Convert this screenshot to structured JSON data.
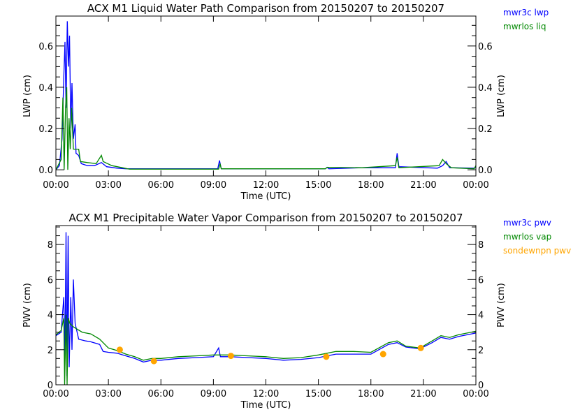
{
  "chart_data": [
    {
      "type": "line",
      "title": "ACX M1 Liquid Water Path Comparison from 20150207 to 20150207",
      "xlabel": "Time (UTC)",
      "ylabel": "LWP (cm)",
      "ylabel_right": "LWP (cm)",
      "xlim": [
        0,
        24
      ],
      "ylim": [
        -0.03,
        0.745
      ],
      "x_ticks": [
        0,
        3,
        6,
        9,
        12,
        15,
        18,
        21,
        24
      ],
      "x_tick_labels": [
        "00:00",
        "03:00",
        "06:00",
        "09:00",
        "12:00",
        "15:00",
        "18:00",
        "21:00",
        "00:00"
      ],
      "y_ticks": [
        0,
        0.2,
        0.4,
        0.6
      ],
      "y_tick_labels": [
        "0.0",
        "0.2",
        "0.4",
        "0.6"
      ],
      "legend_position": "outside-top-right",
      "series": [
        {
          "name": "mwr3c lwp",
          "color": "#0000ff",
          "points": [
            [
              0,
              0.0
            ],
            [
              0.2,
              0.02
            ],
            [
              0.35,
              0.15
            ],
            [
              0.45,
              0.45
            ],
            [
              0.52,
              0.62
            ],
            [
              0.58,
              0.3
            ],
            [
              0.65,
              0.72
            ],
            [
              0.72,
              0.5
            ],
            [
              0.78,
              0.65
            ],
            [
              0.85,
              0.2
            ],
            [
              0.92,
              0.42
            ],
            [
              1.0,
              0.15
            ],
            [
              1.1,
              0.22
            ],
            [
              1.15,
              0.08
            ],
            [
              1.3,
              0.07
            ],
            [
              1.45,
              0.03
            ],
            [
              1.8,
              0.02
            ],
            [
              2.2,
              0.02
            ],
            [
              2.6,
              0.035
            ],
            [
              2.9,
              0.015
            ],
            [
              3.5,
              0.008
            ],
            [
              4,
              0.005
            ],
            [
              9.25,
              0.005
            ],
            [
              9.35,
              0.045
            ],
            [
              9.45,
              0.005
            ],
            [
              15.4,
              0.005
            ],
            [
              15.5,
              0.012
            ],
            [
              15.6,
              0.005
            ],
            [
              17.5,
              0.01
            ],
            [
              19.4,
              0.01
            ],
            [
              19.5,
              0.08
            ],
            [
              19.6,
              0.015
            ],
            [
              21.8,
              0.008
            ],
            [
              22.1,
              0.02
            ],
            [
              22.3,
              0.04
            ],
            [
              22.5,
              0.01
            ],
            [
              23.9,
              0.008
            ],
            [
              24,
              0.012
            ]
          ]
        },
        {
          "name": "mwrlos liq",
          "color": "#008800",
          "points": [
            [
              0,
              0.0
            ],
            [
              0.3,
              0.05
            ],
            [
              0.4,
              0.35
            ],
            [
              0.47,
              0.0
            ],
            [
              0.55,
              0.3
            ],
            [
              0.62,
              0.4
            ],
            [
              0.68,
              0.0
            ],
            [
              0.75,
              0.25
            ],
            [
              0.82,
              0.1
            ],
            [
              0.9,
              0.3
            ],
            [
              1.0,
              0.1
            ],
            [
              1.1,
              0.1
            ],
            [
              1.3,
              0.1
            ],
            [
              1.4,
              0.04
            ],
            [
              1.8,
              0.035
            ],
            [
              2.3,
              0.03
            ],
            [
              2.6,
              0.07
            ],
            [
              2.7,
              0.04
            ],
            [
              3.2,
              0.02
            ],
            [
              3.8,
              0.01
            ],
            [
              4.2,
              0.003
            ],
            [
              9.3,
              0.003
            ],
            [
              9.38,
              0.03
            ],
            [
              9.45,
              0.005
            ],
            [
              15.4,
              0.005
            ],
            [
              15.5,
              0.012
            ],
            [
              17.5,
              0.01
            ],
            [
              19.4,
              0.02
            ],
            [
              19.5,
              0.06
            ],
            [
              19.6,
              0.01
            ],
            [
              21.9,
              0.02
            ],
            [
              22.1,
              0.05
            ],
            [
              22.3,
              0.03
            ],
            [
              22.6,
              0.01
            ],
            [
              23.9,
              0.005
            ],
            [
              24,
              0.02
            ]
          ]
        }
      ]
    },
    {
      "type": "line",
      "title": "ACX M1 Precipitable Water Vapor Comparison from 20150207 to 20150207",
      "xlabel": "Time (UTC)",
      "ylabel": "PWV (cm)",
      "ylabel_right": "PWV (cm)",
      "xlim": [
        0,
        24
      ],
      "ylim": [
        0,
        9.08
      ],
      "x_ticks": [
        0,
        3,
        6,
        9,
        12,
        15,
        18,
        21,
        24
      ],
      "x_tick_labels": [
        "00:00",
        "03:00",
        "06:00",
        "09:00",
        "12:00",
        "15:00",
        "18:00",
        "21:00",
        "00:00"
      ],
      "y_ticks": [
        0,
        2,
        4,
        6,
        8
      ],
      "y_tick_labels": [
        "0",
        "2",
        "4",
        "6",
        "8"
      ],
      "legend_position": "outside-top-right",
      "series": [
        {
          "name": "mwr3c pwv",
          "color": "#0000ff",
          "points": [
            [
              0,
              2.8
            ],
            [
              0.3,
              3.0
            ],
            [
              0.45,
              5.0
            ],
            [
              0.52,
              1.5
            ],
            [
              0.58,
              8.7
            ],
            [
              0.63,
              0.5
            ],
            [
              0.7,
              8.5
            ],
            [
              0.76,
              1.0
            ],
            [
              0.85,
              5.0
            ],
            [
              0.92,
              2.0
            ],
            [
              1.0,
              6.0
            ],
            [
              1.1,
              3.5
            ],
            [
              1.3,
              2.6
            ],
            [
              1.7,
              2.5
            ],
            [
              2.0,
              2.45
            ],
            [
              2.5,
              2.3
            ],
            [
              2.7,
              1.9
            ],
            [
              3.0,
              1.85
            ],
            [
              3.5,
              1.8
            ],
            [
              4.0,
              1.65
            ],
            [
              4.5,
              1.5
            ],
            [
              5.0,
              1.3
            ],
            [
              5.5,
              1.4
            ],
            [
              6.0,
              1.4
            ],
            [
              7,
              1.5
            ],
            [
              8,
              1.55
            ],
            [
              9,
              1.6
            ],
            [
              9.3,
              2.1
            ],
            [
              9.4,
              1.6
            ],
            [
              10,
              1.6
            ],
            [
              11,
              1.55
            ],
            [
              12,
              1.5
            ],
            [
              13,
              1.4
            ],
            [
              14,
              1.45
            ],
            [
              15,
              1.55
            ],
            [
              16,
              1.75
            ],
            [
              17,
              1.75
            ],
            [
              18,
              1.75
            ],
            [
              19,
              2.3
            ],
            [
              19.5,
              2.4
            ],
            [
              20,
              2.15
            ],
            [
              20.8,
              2.05
            ],
            [
              21.5,
              2.4
            ],
            [
              22,
              2.7
            ],
            [
              22.5,
              2.6
            ],
            [
              23,
              2.75
            ],
            [
              24,
              2.95
            ]
          ]
        },
        {
          "name": "mwrlos vap",
          "color": "#008800",
          "points": [
            [
              0,
              2.85
            ],
            [
              0.3,
              3.1
            ],
            [
              0.45,
              3.8
            ],
            [
              0.5,
              0.0
            ],
            [
              0.58,
              4.0
            ],
            [
              0.64,
              0.0
            ],
            [
              0.7,
              3.8
            ],
            [
              0.8,
              3.5
            ],
            [
              1.0,
              3.3
            ],
            [
              1.5,
              3.0
            ],
            [
              2.0,
              2.9
            ],
            [
              2.5,
              2.6
            ],
            [
              3.0,
              2.1
            ],
            [
              3.5,
              1.95
            ],
            [
              4.0,
              1.75
            ],
            [
              4.5,
              1.6
            ],
            [
              5.0,
              1.4
            ],
            [
              5.5,
              1.5
            ],
            [
              6.0,
              1.5
            ],
            [
              7,
              1.6
            ],
            [
              8,
              1.65
            ],
            [
              9,
              1.7
            ],
            [
              10,
              1.7
            ],
            [
              11,
              1.65
            ],
            [
              12,
              1.6
            ],
            [
              13,
              1.5
            ],
            [
              14,
              1.55
            ],
            [
              15,
              1.7
            ],
            [
              16,
              1.9
            ],
            [
              17,
              1.9
            ],
            [
              18,
              1.85
            ],
            [
              19,
              2.4
            ],
            [
              19.5,
              2.5
            ],
            [
              20,
              2.2
            ],
            [
              20.8,
              2.1
            ],
            [
              21.5,
              2.5
            ],
            [
              22,
              2.8
            ],
            [
              22.5,
              2.7
            ],
            [
              23,
              2.85
            ],
            [
              24,
              3.05
            ]
          ]
        },
        {
          "name": "sondewnpn pwv",
          "color": "#ffa500",
          "marker": "dot",
          "points": [
            [
              3.65,
              2.0
            ],
            [
              5.6,
              1.35
            ],
            [
              10.0,
              1.65
            ],
            [
              15.45,
              1.6
            ],
            [
              18.7,
              1.75
            ],
            [
              20.85,
              2.1
            ]
          ]
        }
      ]
    }
  ]
}
